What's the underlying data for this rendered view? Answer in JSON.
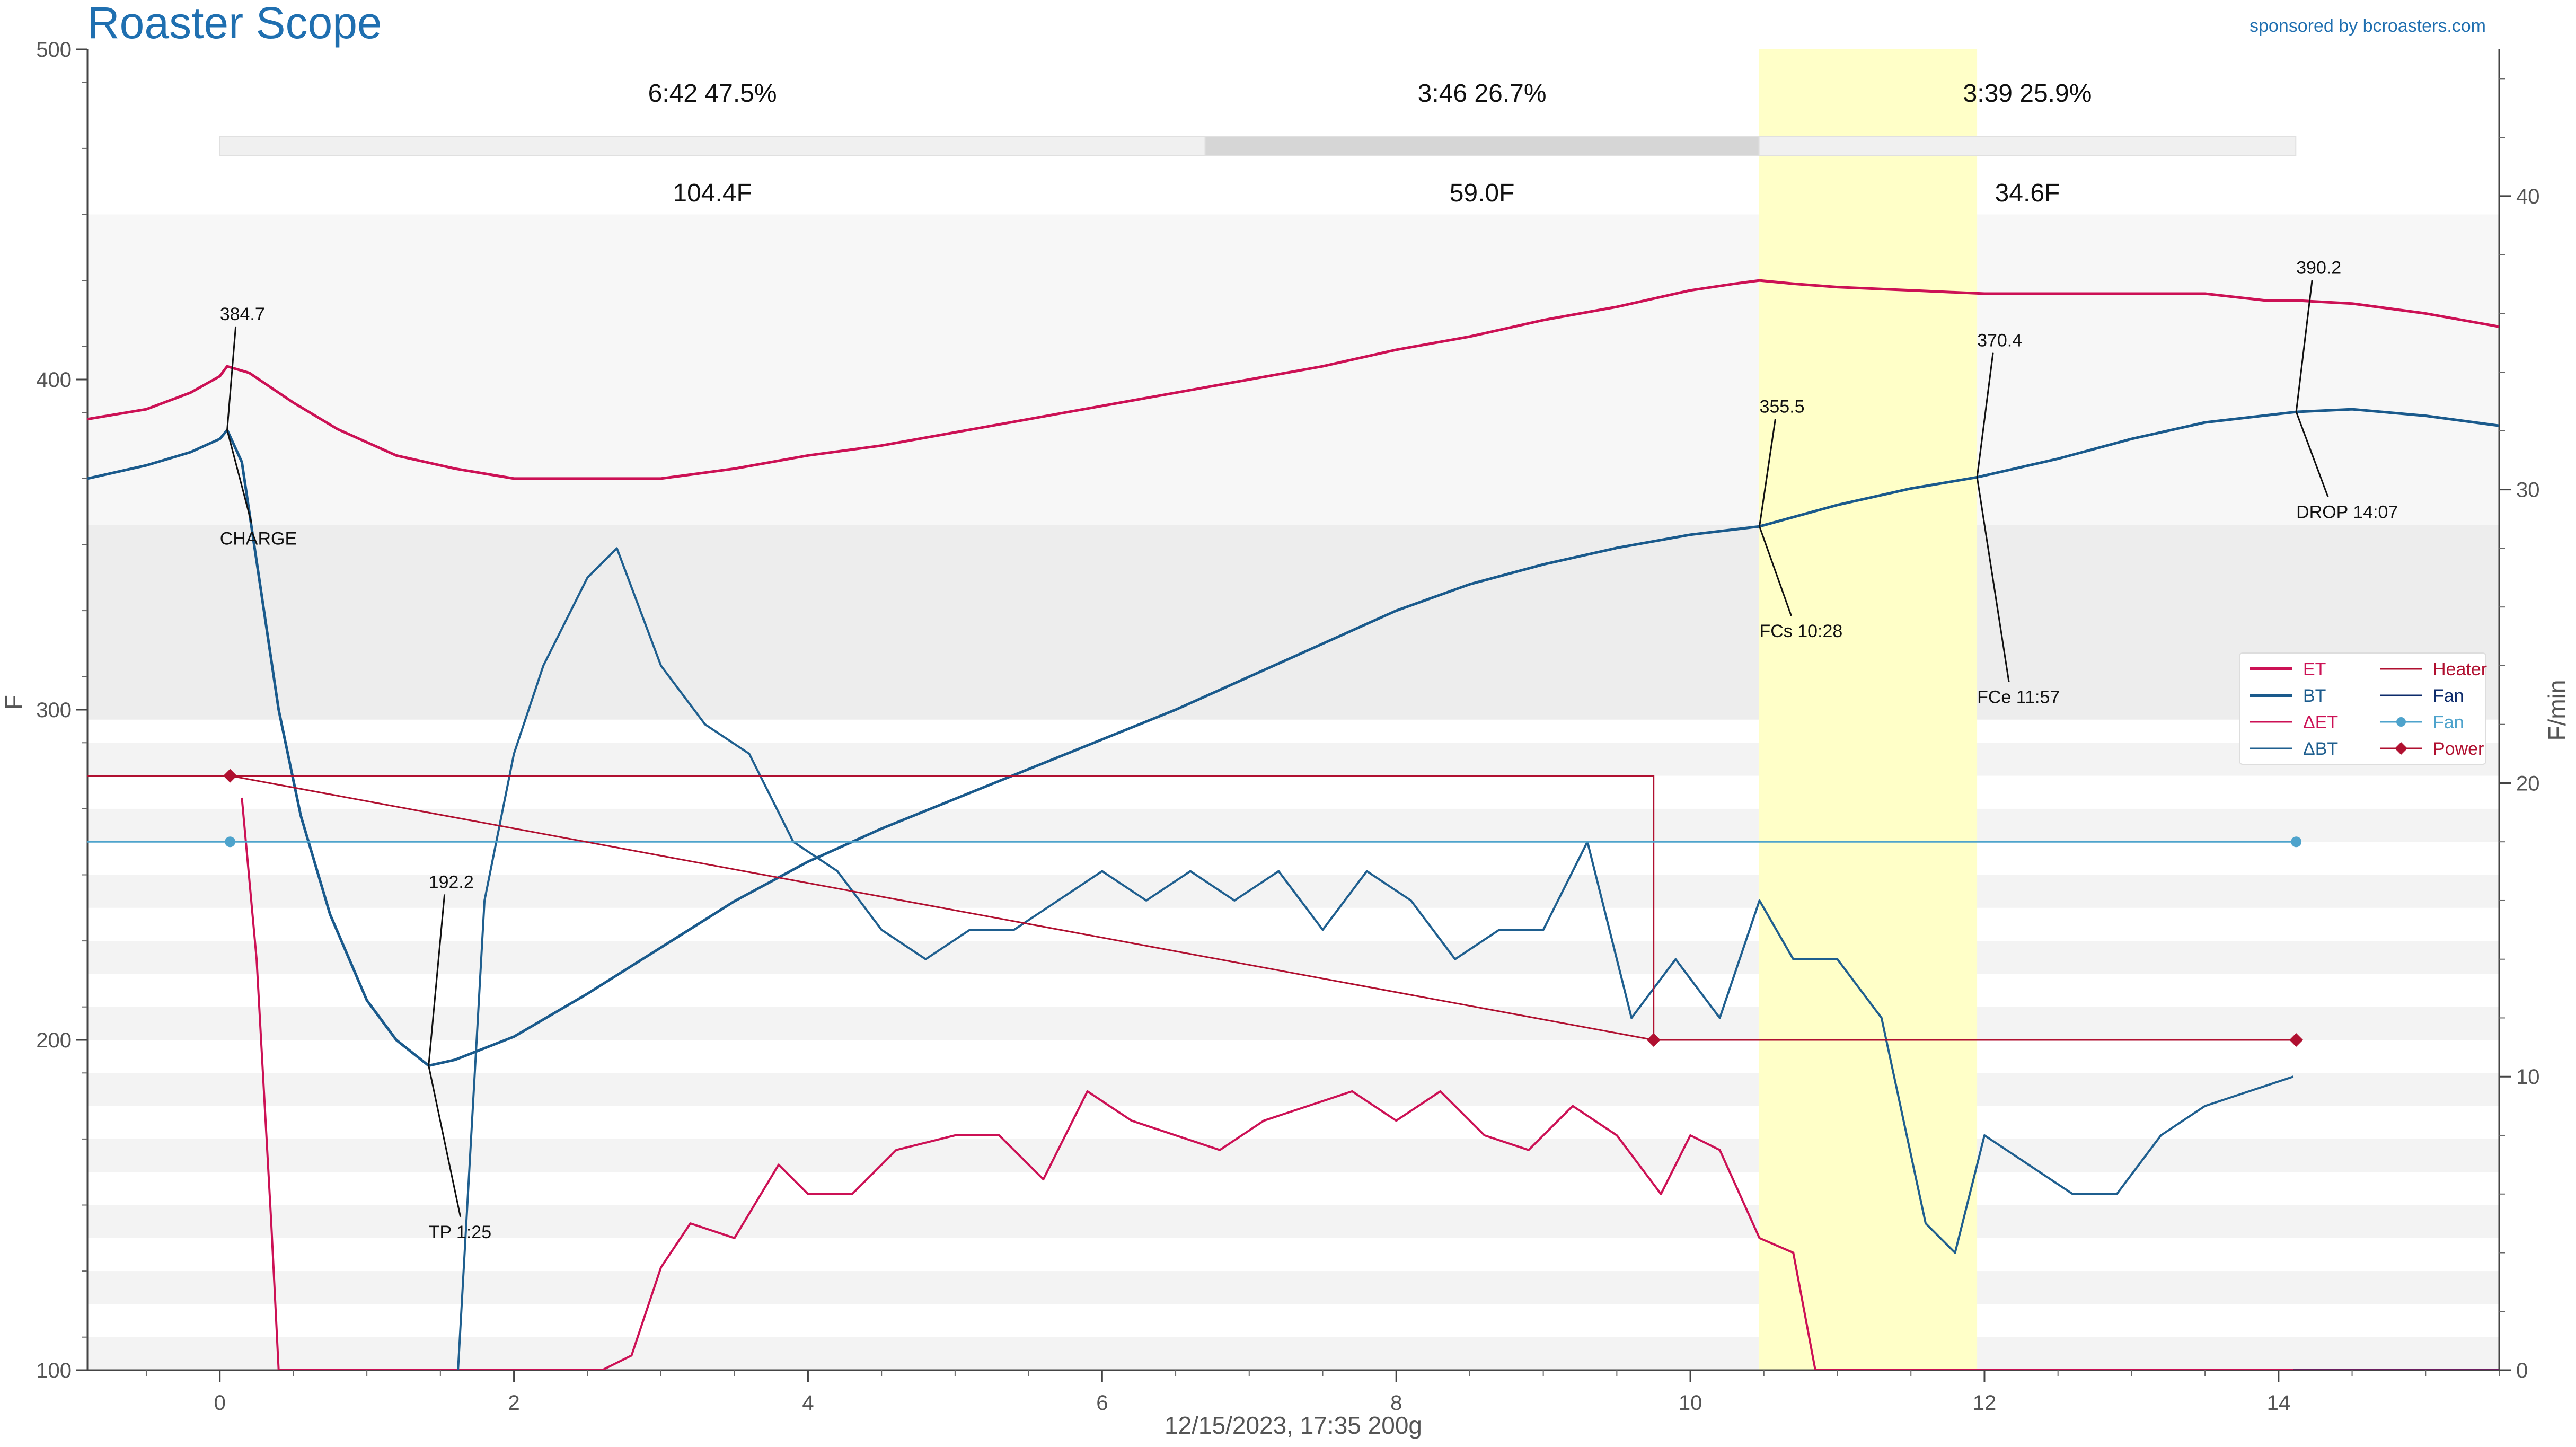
{
  "header": {
    "title": "Roaster Scope",
    "sponsor": "sponsored by bcroasters.com"
  },
  "footer": {
    "caption": "12/15/2023, 17:35   200g"
  },
  "colors": {
    "et": "#cc1155",
    "bt": "#1a5a8c",
    "det": "#cc1155",
    "dbt": "#1f5f8f",
    "heater": "#b01030",
    "fan": "#0d2b6b",
    "fan_setting": "#4ea3cc",
    "power": "#b01030",
    "highlight": "#ffffc8",
    "title": "#1f6fb0"
  },
  "phases": [
    {
      "time": "6:42",
      "pct": "47.5%",
      "rise": "104.4F",
      "start": 0.0,
      "end": 6.7
    },
    {
      "time": "3:46",
      "pct": "26.7%",
      "rise": "59.0F",
      "start": 6.7,
      "end": 10.467
    },
    {
      "time": "3:39",
      "pct": "25.9%",
      "rise": "34.6F",
      "start": 10.467,
      "end": 14.117
    }
  ],
  "chart_data": {
    "type": "line",
    "xlabel": "",
    "ylabel": "F",
    "ylabel_right": "F/min",
    "xlim": [
      -0.9,
      15.5
    ],
    "ylim": [
      100,
      500
    ],
    "ylim_right": [
      0,
      45
    ],
    "x_ticks": [
      "0",
      "2",
      "4",
      "6",
      "8",
      "10",
      "12",
      "14"
    ],
    "y_ticks": [
      "100",
      "200",
      "300",
      "400",
      "500"
    ],
    "y_ticks_right": [
      "0",
      "10",
      "20",
      "30",
      "40"
    ],
    "highlight_band": [
      10.467,
      11.95
    ],
    "series": [
      {
        "name": "ET",
        "axis": "left",
        "points": [
          [
            -0.9,
            388
          ],
          [
            -0.5,
            391
          ],
          [
            -0.2,
            396
          ],
          [
            0.0,
            401
          ],
          [
            0.05,
            404
          ],
          [
            0.2,
            402
          ],
          [
            0.5,
            393
          ],
          [
            0.8,
            385
          ],
          [
            1.2,
            377
          ],
          [
            1.6,
            373
          ],
          [
            2.0,
            370
          ],
          [
            2.5,
            370
          ],
          [
            3.0,
            370
          ],
          [
            3.5,
            373
          ],
          [
            4.0,
            377
          ],
          [
            4.5,
            380
          ],
          [
            5.0,
            384
          ],
          [
            5.5,
            388
          ],
          [
            6.0,
            392
          ],
          [
            6.5,
            396
          ],
          [
            7.0,
            400
          ],
          [
            7.5,
            404
          ],
          [
            8.0,
            409
          ],
          [
            8.5,
            413
          ],
          [
            9.0,
            418
          ],
          [
            9.5,
            422
          ],
          [
            10.0,
            427
          ],
          [
            10.3,
            429
          ],
          [
            10.47,
            430
          ],
          [
            10.7,
            429
          ],
          [
            11.0,
            428
          ],
          [
            11.5,
            427
          ],
          [
            12.0,
            426
          ],
          [
            12.5,
            426
          ],
          [
            13.0,
            426
          ],
          [
            13.5,
            426
          ],
          [
            13.9,
            424
          ],
          [
            14.1,
            424
          ],
          [
            14.5,
            423
          ],
          [
            15.0,
            420
          ],
          [
            15.5,
            416
          ]
        ]
      },
      {
        "name": "BT",
        "axis": "left",
        "points": [
          [
            -0.9,
            370
          ],
          [
            -0.5,
            374
          ],
          [
            -0.2,
            378
          ],
          [
            0.0,
            382
          ],
          [
            0.05,
            384.7
          ],
          [
            0.15,
            375
          ],
          [
            0.25,
            345
          ],
          [
            0.4,
            300
          ],
          [
            0.55,
            268
          ],
          [
            0.75,
            238
          ],
          [
            1.0,
            212
          ],
          [
            1.2,
            200
          ],
          [
            1.42,
            192.2
          ],
          [
            1.6,
            194
          ],
          [
            2.0,
            201
          ],
          [
            2.5,
            214
          ],
          [
            3.0,
            228
          ],
          [
            3.5,
            242
          ],
          [
            4.0,
            254
          ],
          [
            4.5,
            264
          ],
          [
            5.0,
            273
          ],
          [
            5.5,
            282
          ],
          [
            6.0,
            291
          ],
          [
            6.5,
            300
          ],
          [
            7.0,
            310
          ],
          [
            7.5,
            320
          ],
          [
            8.0,
            330
          ],
          [
            8.5,
            338
          ],
          [
            9.0,
            344
          ],
          [
            9.5,
            349
          ],
          [
            10.0,
            353
          ],
          [
            10.47,
            355.5
          ],
          [
            11.0,
            362
          ],
          [
            11.5,
            367
          ],
          [
            11.95,
            370.4
          ],
          [
            12.5,
            376
          ],
          [
            13.0,
            382
          ],
          [
            13.5,
            387
          ],
          [
            14.12,
            390.2
          ],
          [
            14.5,
            391
          ],
          [
            15.0,
            389
          ],
          [
            15.5,
            386
          ]
        ]
      },
      {
        "name": "ΔET",
        "axis": "right",
        "points": [
          [
            0.15,
            19.5
          ],
          [
            0.25,
            14
          ],
          [
            0.35,
            5
          ],
          [
            0.4,
            0
          ],
          [
            2.6,
            0
          ],
          [
            2.8,
            0.5
          ],
          [
            3.0,
            3.5
          ],
          [
            3.2,
            5
          ],
          [
            3.5,
            4.5
          ],
          [
            3.8,
            7
          ],
          [
            4.0,
            6
          ],
          [
            4.3,
            6
          ],
          [
            4.6,
            7.5
          ],
          [
            5.0,
            8
          ],
          [
            5.3,
            8
          ],
          [
            5.6,
            6.5
          ],
          [
            5.9,
            9.5
          ],
          [
            6.2,
            8.5
          ],
          [
            6.5,
            8
          ],
          [
            6.8,
            7.5
          ],
          [
            7.1,
            8.5
          ],
          [
            7.4,
            9
          ],
          [
            7.7,
            9.5
          ],
          [
            8.0,
            8.5
          ],
          [
            8.3,
            9.5
          ],
          [
            8.6,
            8
          ],
          [
            8.9,
            7.5
          ],
          [
            9.2,
            9
          ],
          [
            9.5,
            8
          ],
          [
            9.8,
            6
          ],
          [
            10.0,
            8
          ],
          [
            10.2,
            7.5
          ],
          [
            10.47,
            4.5
          ],
          [
            10.7,
            4
          ],
          [
            10.85,
            0
          ],
          [
            15.5,
            0
          ]
        ]
      },
      {
        "name": "ΔBT",
        "axis": "right",
        "points": [
          [
            1.62,
            0
          ],
          [
            1.8,
            16
          ],
          [
            2.0,
            21
          ],
          [
            2.2,
            24
          ],
          [
            2.5,
            27
          ],
          [
            2.7,
            28
          ],
          [
            3.0,
            24
          ],
          [
            3.3,
            22
          ],
          [
            3.6,
            21
          ],
          [
            3.9,
            18
          ],
          [
            4.2,
            17
          ],
          [
            4.5,
            15
          ],
          [
            4.8,
            14
          ],
          [
            5.1,
            15
          ],
          [
            5.4,
            15
          ],
          [
            5.7,
            16
          ],
          [
            6.0,
            17
          ],
          [
            6.3,
            16
          ],
          [
            6.6,
            17
          ],
          [
            6.9,
            16
          ],
          [
            7.2,
            17
          ],
          [
            7.5,
            15
          ],
          [
            7.8,
            17
          ],
          [
            8.1,
            16
          ],
          [
            8.4,
            14
          ],
          [
            8.7,
            15
          ],
          [
            9.0,
            15
          ],
          [
            9.3,
            18
          ],
          [
            9.6,
            12
          ],
          [
            9.9,
            14
          ],
          [
            10.2,
            12
          ],
          [
            10.47,
            16
          ],
          [
            10.7,
            14
          ],
          [
            11.0,
            14
          ],
          [
            11.3,
            12
          ],
          [
            11.6,
            5
          ],
          [
            11.8,
            4
          ],
          [
            12.0,
            8
          ],
          [
            12.3,
            7
          ],
          [
            12.6,
            6
          ],
          [
            12.9,
            6
          ],
          [
            13.2,
            8
          ],
          [
            13.5,
            9
          ],
          [
            13.8,
            9.5
          ],
          [
            14.1,
            10
          ]
        ]
      },
      {
        "name": "Heater",
        "axis": "left",
        "points": [
          [
            -0.9,
            280
          ],
          [
            9.75,
            280
          ],
          [
            9.75,
            200
          ],
          [
            14.12,
            200
          ]
        ]
      },
      {
        "name": "Fan",
        "axis": "right",
        "points": [
          [
            14.1,
            0
          ],
          [
            15.5,
            0
          ]
        ]
      },
      {
        "name": "Fan",
        "axis": "left",
        "marker": "circle",
        "points": [
          [
            -0.9,
            260
          ],
          [
            0.07,
            260
          ],
          [
            14.12,
            260
          ]
        ],
        "marker_points": [
          [
            0.07,
            260
          ],
          [
            14.12,
            260
          ]
        ]
      },
      {
        "name": "Power",
        "axis": "left",
        "marker": "diamond",
        "points": [
          [
            0.07,
            280
          ],
          [
            9.75,
            200
          ],
          [
            14.12,
            200
          ]
        ],
        "marker_points": [
          [
            0.07,
            280
          ],
          [
            9.75,
            200
          ],
          [
            14.12,
            200
          ]
        ]
      }
    ],
    "annotations": [
      {
        "value": "384.7",
        "event": "CHARGE",
        "x": 0.05,
        "y": 384.7,
        "value_at": [
          0.0,
          418
        ],
        "event_at": [
          0.0,
          350
        ]
      },
      {
        "value": "192.2",
        "event": "TP 1:25",
        "x": 1.42,
        "y": 192.2,
        "value_at": [
          1.42,
          246
        ],
        "event_at": [
          1.42,
          140
        ]
      },
      {
        "value": "355.5",
        "event": "FCs 10:28",
        "x": 10.47,
        "y": 355.5,
        "value_at": [
          10.47,
          390
        ],
        "event_at": [
          10.47,
          322
        ]
      },
      {
        "value": "370.4",
        "event": "FCe 11:57",
        "x": 11.95,
        "y": 370.4,
        "value_at": [
          11.95,
          410
        ],
        "event_at": [
          11.95,
          302
        ]
      },
      {
        "value": "390.2",
        "event": "DROP 14:07",
        "x": 14.12,
        "y": 390.2,
        "value_at": [
          14.12,
          432
        ],
        "event_at": [
          14.12,
          358
        ]
      }
    ],
    "legend": {
      "placement": "right",
      "items": [
        {
          "label": "ET",
          "color": "#cc1155",
          "style": "thick"
        },
        {
          "label": "Heater",
          "color": "#b01030",
          "style": "thin"
        },
        {
          "label": "BT",
          "color": "#1a5a8c",
          "style": "thick"
        },
        {
          "label": "Fan",
          "color": "#0d2b6b",
          "style": "thin"
        },
        {
          "label": "ΔET",
          "color": "#cc1155",
          "style": "thin"
        },
        {
          "label": "Fan",
          "color": "#4ea3cc",
          "style": "circle"
        },
        {
          "label": "ΔBT",
          "color": "#1f5f8f",
          "style": "thin"
        },
        {
          "label": "Power",
          "color": "#b01030",
          "style": "diamond"
        }
      ]
    }
  }
}
